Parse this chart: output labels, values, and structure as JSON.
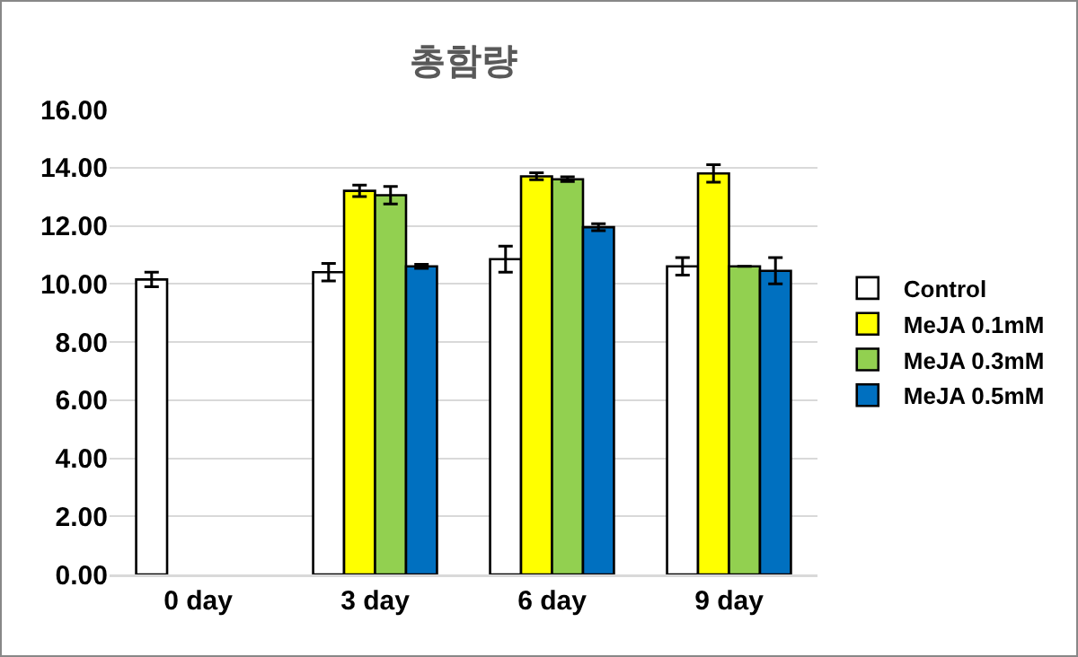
{
  "chart_data": {
    "type": "bar",
    "title": "총함량",
    "categories": [
      "0 day",
      "3 day",
      "6 day",
      "9 day"
    ],
    "series": [
      {
        "name": "Control",
        "color": "#ffffff",
        "values": [
          10.15,
          10.4,
          10.85,
          10.6
        ],
        "errors": [
          0.25,
          0.3,
          0.45,
          0.3
        ]
      },
      {
        "name": "MeJA 0.1mM",
        "color": "#ffff00",
        "values": [
          null,
          13.2,
          13.7,
          13.8
        ],
        "errors": [
          null,
          0.2,
          0.12,
          0.3
        ]
      },
      {
        "name": "MeJA 0.3mM",
        "color": "#92d050",
        "values": [
          null,
          13.05,
          13.6,
          10.6
        ],
        "errors": [
          null,
          0.3,
          0.08,
          0
        ]
      },
      {
        "name": "MeJA 0.5mM",
        "color": "#0070c0",
        "values": [
          null,
          10.6,
          11.95,
          10.45
        ],
        "errors": [
          null,
          0.07,
          0.12,
          0.45
        ]
      }
    ],
    "ylim": [
      0,
      16
    ],
    "yticks": [
      {
        "value": 0,
        "label": "0.00"
      },
      {
        "value": 2,
        "label": "2.00"
      },
      {
        "value": 4,
        "label": "4.00"
      },
      {
        "value": 6,
        "label": "6.00"
      },
      {
        "value": 8,
        "label": "8.00"
      },
      {
        "value": 10,
        "label": "10.00"
      },
      {
        "value": 12,
        "label": "12.00"
      },
      {
        "value": 14,
        "label": "14.00"
      },
      {
        "value": 16,
        "label": "16.00"
      }
    ],
    "grid": "y",
    "legend": "right"
  }
}
